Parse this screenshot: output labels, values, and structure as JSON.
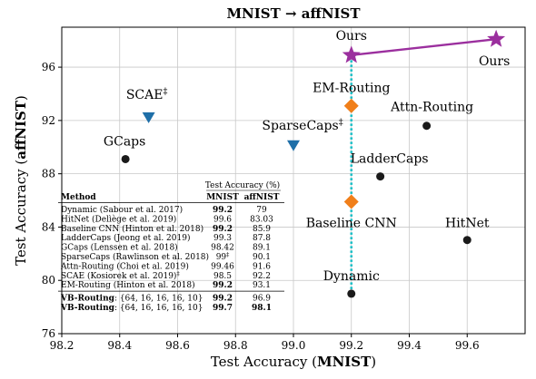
{
  "chart_data": {
    "type": "scatter",
    "title": "MNIST → affNIST",
    "xlabel_prefix": "Test Accuracy (",
    "xlabel_bold": "MNIST",
    "xlabel_suffix": ")",
    "ylabel_prefix": "Test Accuracy (",
    "ylabel_bold": "affNIST",
    "ylabel_suffix": ")",
    "xlim": [
      98.2,
      99.8
    ],
    "ylim": [
      76,
      99
    ],
    "xticks": [
      98.2,
      98.4,
      98.6,
      98.8,
      99.0,
      99.2,
      99.4,
      99.6
    ],
    "xtick_labels": [
      "98.2",
      "98.4",
      "98.6",
      "98.8",
      "99.0",
      "99.2",
      "99.4",
      "99.6"
    ],
    "yticks": [
      76,
      80,
      84,
      88,
      92,
      96
    ],
    "ytick_labels": [
      "76",
      "80",
      "84",
      "88",
      "92",
      "96"
    ],
    "grid": true,
    "colors": {
      "circle": "#1a1a1a",
      "triangle": "#1f6fa8",
      "diamond": "#f07f1a",
      "star": "#9b2f9e",
      "dotted": "#17bfc7"
    },
    "points": [
      {
        "label": "GCaps",
        "x": 98.42,
        "y": 89.1,
        "marker": "circle"
      },
      {
        "label": "SCAE",
        "label_sup": "‡",
        "x": 98.5,
        "y": 92.2,
        "marker": "triangle"
      },
      {
        "label": "SparseCaps",
        "label_sup": "‡",
        "x": 99.0,
        "y": 90.1,
        "marker": "triangle"
      },
      {
        "label": "EM-Routing",
        "x": 99.2,
        "y": 93.1,
        "marker": "diamond"
      },
      {
        "label": "Baseline CNN",
        "x": 99.2,
        "y": 85.9,
        "marker": "diamond"
      },
      {
        "label": "Attn-Routing",
        "x": 99.46,
        "y": 91.6,
        "marker": "circle"
      },
      {
        "label": "LadderCaps",
        "x": 99.3,
        "y": 87.8,
        "marker": "circle"
      },
      {
        "label": "HitNet",
        "x": 99.6,
        "y": 83.03,
        "marker": "circle"
      },
      {
        "label": "Dynamic",
        "x": 99.2,
        "y": 79.0,
        "marker": "circle"
      },
      {
        "label": "Ours",
        "x": 99.2,
        "y": 96.9,
        "marker": "star"
      },
      {
        "label": "Ours",
        "x": 99.7,
        "y": 98.1,
        "marker": "star"
      }
    ],
    "ours_line": [
      [
        99.2,
        96.9
      ],
      [
        99.7,
        98.1
      ]
    ],
    "dotted_line": {
      "x": 99.2,
      "y_from": 79.0,
      "y_to": 96.9
    },
    "table": {
      "group_header": "Test Accuracy (%)",
      "headers": [
        "Method",
        "MNIST",
        "affNIST"
      ],
      "rows": [
        {
          "method": "Dynamic (Sabour et al. 2017)",
          "mnist": "99.2",
          "affnist": "79",
          "mnist_bold": true
        },
        {
          "method": "HitNet (Delìège et al. 2019)",
          "mnist": "99.6",
          "affnist": "83.03"
        },
        {
          "method": "Baseline CNN (Hinton et al. 2018)",
          "mnist": "99.2",
          "affnist": "85.9",
          "mnist_bold": true
        },
        {
          "method": "LadderCaps (Jeong et al. 2019)",
          "mnist": "99.3",
          "affnist": "87.8"
        },
        {
          "method": "GCaps (Lenssen et al. 2018)",
          "mnist": "98.42",
          "affnist": "89.1"
        },
        {
          "method": "SparseCaps (Rawlinson et al. 2018)",
          "mnist": "99",
          "mnist_sup": "‡",
          "affnist": "90.1"
        },
        {
          "method": "Attn-Routing (Choi et al. 2019)",
          "mnist": "99.46",
          "affnist": "91.6"
        },
        {
          "method": "SCAE (Kosiorek et al. 2019)",
          "method_sup": "‡",
          "mnist": "98.5",
          "affnist": "92.2"
        },
        {
          "method": "EM-Routing (Hinton et al. 2018)",
          "mnist": "99.2",
          "affnist": "93.1",
          "mnist_bold": true
        }
      ],
      "ours_rows": [
        {
          "method_bold": "VB-Routing",
          "method_rest": ": {64, 16, 16, 16, 10}",
          "mnist": "99.2",
          "affnist": "96.9",
          "mnist_bold": true
        },
        {
          "method_bold": "VB-Routing",
          "method_rest": ": {64, 16, 16, 16, 10}",
          "mnist": "99.7",
          "affnist": "98.1",
          "mnist_bold": true,
          "affnist_bold": true
        }
      ]
    }
  }
}
